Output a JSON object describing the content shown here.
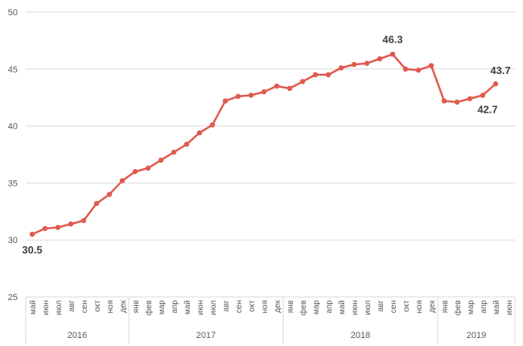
{
  "chart_data": {
    "type": "line",
    "title": "",
    "xlabel": "",
    "ylabel": "",
    "ylim": [
      25,
      50
    ],
    "yticks": [
      25,
      30,
      35,
      40,
      45,
      50
    ],
    "grid": true,
    "line_color": "#e05a4f",
    "grid_color": "#d9d9d9",
    "text_color": "#595959",
    "categories": [
      "май",
      "июн",
      "июл",
      "авг",
      "сен",
      "окт",
      "ноя",
      "дек",
      "янв",
      "фев",
      "мар",
      "апр",
      "май",
      "июн",
      "июл",
      "авг",
      "сен",
      "окт",
      "ноя",
      "дек",
      "янв",
      "фев",
      "мар",
      "апр",
      "май",
      "июн",
      "июл",
      "авг",
      "сен",
      "окт",
      "ноя",
      "дек",
      "янв",
      "фев",
      "мар",
      "апр",
      "май",
      "июн"
    ],
    "year_groups": [
      {
        "label": "2016",
        "start": 0,
        "count": 8
      },
      {
        "label": "2017",
        "start": 8,
        "count": 12
      },
      {
        "label": "2018",
        "start": 20,
        "count": 12
      },
      {
        "label": "2019",
        "start": 32,
        "count": 6
      }
    ],
    "series": [
      {
        "values": [
          30.5,
          31.0,
          31.1,
          31.4,
          31.7,
          33.2,
          34.0,
          35.2,
          36.0,
          36.3,
          37.0,
          37.7,
          38.4,
          39.4,
          40.1,
          42.2,
          42.6,
          42.7,
          43.0,
          43.5,
          43.3,
          43.9,
          44.5,
          44.5,
          45.1,
          45.4,
          45.5,
          45.9,
          46.3,
          45.0,
          44.9,
          45.3,
          42.2,
          42.1,
          42.4,
          42.7,
          43.7,
          null
        ]
      }
    ],
    "annotations": [
      {
        "index": 0,
        "text": "30.5",
        "position": "below"
      },
      {
        "index": 28,
        "text": "46.3",
        "position": "above"
      },
      {
        "index": 36,
        "text": "43.7",
        "position": "above-right"
      },
      {
        "index": 35,
        "text": "42.7",
        "position": "below-right"
      }
    ]
  }
}
